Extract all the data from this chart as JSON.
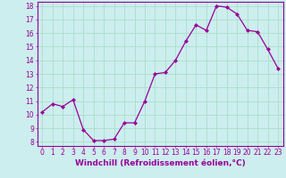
{
  "x": [
    0,
    1,
    2,
    3,
    4,
    5,
    6,
    7,
    8,
    9,
    10,
    11,
    12,
    13,
    14,
    15,
    16,
    17,
    18,
    19,
    20,
    21,
    22,
    23
  ],
  "y": [
    10.2,
    10.8,
    10.6,
    11.1,
    8.9,
    8.1,
    8.1,
    8.2,
    9.4,
    9.4,
    11.0,
    13.0,
    13.1,
    14.0,
    15.4,
    16.6,
    16.2,
    18.0,
    17.9,
    17.4,
    16.2,
    16.1,
    14.8,
    13.4
  ],
  "line_color": "#990099",
  "marker": "D",
  "marker_size": 2.0,
  "linewidth": 0.9,
  "xlabel": "Windchill (Refroidissement éolien,°C)",
  "xlabel_fontsize": 6.5,
  "ylim": [
    7.7,
    18.3
  ],
  "xlim": [
    -0.5,
    23.5
  ],
  "yticks": [
    8,
    9,
    10,
    11,
    12,
    13,
    14,
    15,
    16,
    17,
    18
  ],
  "xticks": [
    0,
    1,
    2,
    3,
    4,
    5,
    6,
    7,
    8,
    9,
    10,
    11,
    12,
    13,
    14,
    15,
    16,
    17,
    18,
    19,
    20,
    21,
    22,
    23
  ],
  "background_color": "#cceeee",
  "grid_color": "#aaddcc",
  "tick_color": "#990099",
  "tick_fontsize": 5.5,
  "tick_label_color": "#990099",
  "spine_color": "#990099"
}
